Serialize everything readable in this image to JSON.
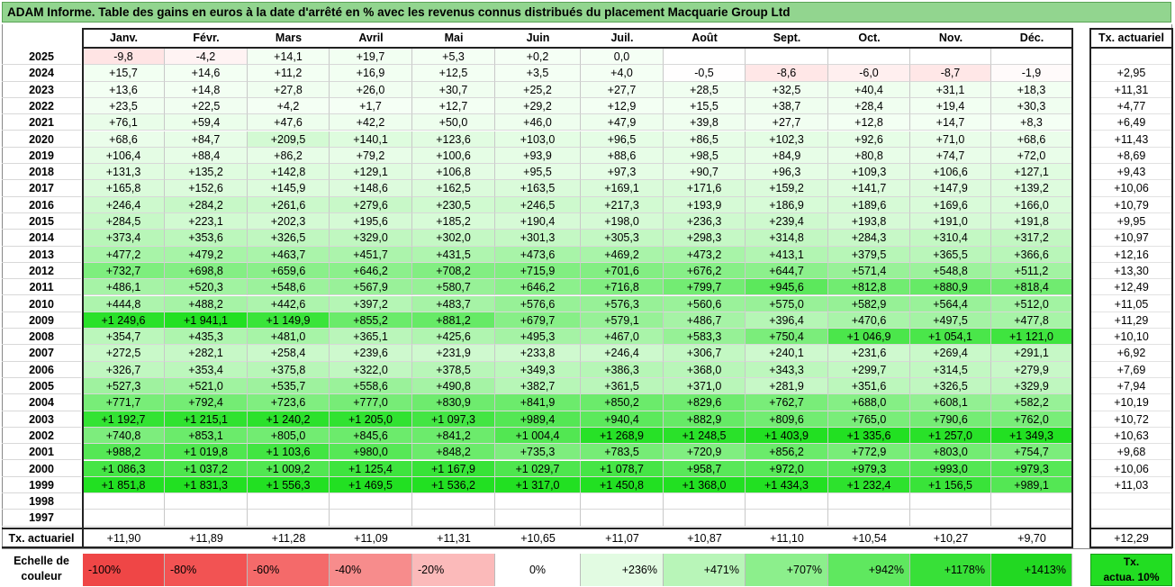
{
  "title": "ADAM Informe. Table des gains en euros à la date d'arrêté en % avec les revenus connus distribués du placement Macquarie Group Ltd",
  "months": [
    "Janv.",
    "Févr.",
    "Mars",
    "Avril",
    "Mai",
    "Juin",
    "Juil.",
    "Août",
    "Sept.",
    "Oct.",
    "Nov.",
    "Déc."
  ],
  "tx_header": "Tx. actuariel",
  "rows": [
    {
      "year": "2025",
      "vals": [
        "-9,8",
        "-4,2",
        "+14,1",
        "+19,7",
        "+5,3",
        "+0,2",
        "0,0",
        "",
        "",
        "",
        "",
        ""
      ],
      "tx": ""
    },
    {
      "year": "2024",
      "vals": [
        "+15,7",
        "+14,6",
        "+11,2",
        "+16,9",
        "+12,5",
        "+3,5",
        "+4,0",
        "-0,5",
        "-8,6",
        "-6,0",
        "-8,7",
        "-1,9"
      ],
      "tx": "+2,95"
    },
    {
      "year": "2023",
      "vals": [
        "+13,6",
        "+14,8",
        "+27,8",
        "+26,0",
        "+30,7",
        "+25,2",
        "+27,7",
        "+28,5",
        "+32,5",
        "+40,4",
        "+31,1",
        "+18,3"
      ],
      "tx": "+11,31"
    },
    {
      "year": "2022",
      "vals": [
        "+23,5",
        "+22,5",
        "+4,2",
        "+1,7",
        "+12,7",
        "+29,2",
        "+12,9",
        "+15,5",
        "+38,7",
        "+28,4",
        "+19,4",
        "+30,3"
      ],
      "tx": "+4,77"
    },
    {
      "year": "2021",
      "vals": [
        "+76,1",
        "+59,4",
        "+47,6",
        "+42,2",
        "+50,0",
        "+46,0",
        "+47,9",
        "+39,8",
        "+27,7",
        "+12,8",
        "+14,7",
        "+8,3"
      ],
      "tx": "+6,49"
    },
    {
      "year": "2020",
      "vals": [
        "+68,6",
        "+84,7",
        "+209,5",
        "+140,1",
        "+123,6",
        "+103,0",
        "+96,5",
        "+86,5",
        "+102,3",
        "+92,6",
        "+71,0",
        "+68,6"
      ],
      "tx": "+11,43"
    },
    {
      "year": "2019",
      "vals": [
        "+106,4",
        "+88,4",
        "+86,2",
        "+79,2",
        "+100,6",
        "+93,9",
        "+88,6",
        "+98,5",
        "+84,9",
        "+80,8",
        "+74,7",
        "+72,0"
      ],
      "tx": "+8,69"
    },
    {
      "year": "2018",
      "vals": [
        "+131,3",
        "+135,2",
        "+142,8",
        "+129,1",
        "+106,8",
        "+95,5",
        "+97,3",
        "+90,7",
        "+96,3",
        "+109,3",
        "+106,6",
        "+127,1"
      ],
      "tx": "+9,43"
    },
    {
      "year": "2017",
      "vals": [
        "+165,8",
        "+152,6",
        "+145,9",
        "+148,6",
        "+162,5",
        "+163,5",
        "+169,1",
        "+171,6",
        "+159,2",
        "+141,7",
        "+147,9",
        "+139,2"
      ],
      "tx": "+10,06"
    },
    {
      "year": "2016",
      "vals": [
        "+246,4",
        "+284,2",
        "+261,6",
        "+279,6",
        "+230,5",
        "+246,5",
        "+217,3",
        "+193,9",
        "+186,9",
        "+189,6",
        "+169,6",
        "+166,0"
      ],
      "tx": "+10,79"
    },
    {
      "year": "2015",
      "vals": [
        "+284,5",
        "+223,1",
        "+202,3",
        "+195,6",
        "+185,2",
        "+190,4",
        "+198,0",
        "+236,3",
        "+239,4",
        "+193,8",
        "+191,0",
        "+191,8"
      ],
      "tx": "+9,95"
    },
    {
      "year": "2014",
      "vals": [
        "+373,4",
        "+353,6",
        "+326,5",
        "+329,0",
        "+302,0",
        "+301,3",
        "+305,3",
        "+298,3",
        "+314,8",
        "+284,3",
        "+310,4",
        "+317,2"
      ],
      "tx": "+10,97"
    },
    {
      "year": "2013",
      "vals": [
        "+477,2",
        "+479,2",
        "+463,7",
        "+451,7",
        "+431,5",
        "+473,6",
        "+469,2",
        "+473,2",
        "+413,1",
        "+379,5",
        "+365,5",
        "+366,6"
      ],
      "tx": "+12,16"
    },
    {
      "year": "2012",
      "vals": [
        "+732,7",
        "+698,8",
        "+659,6",
        "+646,2",
        "+708,2",
        "+715,9",
        "+701,6",
        "+676,2",
        "+644,7",
        "+571,4",
        "+548,8",
        "+511,2"
      ],
      "tx": "+13,30"
    },
    {
      "year": "2011",
      "vals": [
        "+486,1",
        "+520,3",
        "+548,6",
        "+567,9",
        "+580,7",
        "+646,2",
        "+716,8",
        "+799,7",
        "+945,6",
        "+812,8",
        "+880,9",
        "+818,4"
      ],
      "tx": "+12,49"
    },
    {
      "year": "2010",
      "vals": [
        "+444,8",
        "+488,2",
        "+442,6",
        "+397,2",
        "+483,7",
        "+576,6",
        "+576,3",
        "+560,6",
        "+575,0",
        "+582,9",
        "+564,4",
        "+512,0"
      ],
      "tx": "+11,05"
    },
    {
      "year": "2009",
      "vals": [
        "+1 249,6",
        "+1 941,1",
        "+1 149,9",
        "+855,2",
        "+881,2",
        "+679,7",
        "+579,1",
        "+486,7",
        "+396,4",
        "+470,6",
        "+497,5",
        "+477,8"
      ],
      "tx": "+11,29"
    },
    {
      "year": "2008",
      "vals": [
        "+354,7",
        "+435,3",
        "+481,0",
        "+365,1",
        "+425,6",
        "+495,3",
        "+467,0",
        "+583,3",
        "+750,4",
        "+1 046,9",
        "+1 054,1",
        "+1 121,0"
      ],
      "tx": "+10,10"
    },
    {
      "year": "2007",
      "vals": [
        "+272,5",
        "+282,1",
        "+258,4",
        "+239,6",
        "+231,9",
        "+233,8",
        "+246,4",
        "+306,7",
        "+240,1",
        "+231,6",
        "+269,4",
        "+291,1"
      ],
      "tx": "+6,92"
    },
    {
      "year": "2006",
      "vals": [
        "+326,7",
        "+353,4",
        "+375,8",
        "+322,0",
        "+378,5",
        "+349,3",
        "+386,3",
        "+368,0",
        "+343,3",
        "+299,7",
        "+314,5",
        "+279,9"
      ],
      "tx": "+7,69"
    },
    {
      "year": "2005",
      "vals": [
        "+527,3",
        "+521,0",
        "+535,7",
        "+558,6",
        "+490,8",
        "+382,7",
        "+361,5",
        "+371,0",
        "+281,9",
        "+351,6",
        "+326,5",
        "+329,9"
      ],
      "tx": "+7,94"
    },
    {
      "year": "2004",
      "vals": [
        "+771,7",
        "+792,4",
        "+723,6",
        "+777,0",
        "+830,9",
        "+841,9",
        "+850,2",
        "+829,6",
        "+762,7",
        "+688,0",
        "+608,1",
        "+582,2"
      ],
      "tx": "+10,19"
    },
    {
      "year": "2003",
      "vals": [
        "+1 192,7",
        "+1 215,1",
        "+1 240,2",
        "+1 205,0",
        "+1 097,3",
        "+989,4",
        "+940,4",
        "+882,9",
        "+809,6",
        "+765,0",
        "+790,6",
        "+762,0"
      ],
      "tx": "+10,72"
    },
    {
      "year": "2002",
      "vals": [
        "+740,8",
        "+853,1",
        "+805,0",
        "+845,6",
        "+841,2",
        "+1 004,4",
        "+1 268,9",
        "+1 248,5",
        "+1 403,9",
        "+1 335,6",
        "+1 257,0",
        "+1 349,3"
      ],
      "tx": "+10,63"
    },
    {
      "year": "2001",
      "vals": [
        "+988,2",
        "+1 019,8",
        "+1 103,6",
        "+980,0",
        "+848,2",
        "+735,3",
        "+783,5",
        "+720,9",
        "+856,2",
        "+772,9",
        "+803,0",
        "+754,7"
      ],
      "tx": "+9,68"
    },
    {
      "year": "2000",
      "vals": [
        "+1 086,3",
        "+1 037,2",
        "+1 009,2",
        "+1 125,4",
        "+1 167,9",
        "+1 029,7",
        "+1 078,7",
        "+958,7",
        "+972,0",
        "+979,3",
        "+993,0",
        "+979,3"
      ],
      "tx": "+10,06"
    },
    {
      "year": "1999",
      "vals": [
        "+1 851,8",
        "+1 831,3",
        "+1 556,3",
        "+1 469,5",
        "+1 536,2",
        "+1 317,0",
        "+1 450,8",
        "+1 368,0",
        "+1 434,3",
        "+1 232,4",
        "+1 156,5",
        "+989,1"
      ],
      "tx": "+11,03"
    },
    {
      "year": "1998",
      "vals": [
        "",
        "",
        "",
        "",
        "",
        "",
        "",
        "",
        "",
        "",
        "",
        ""
      ],
      "tx": ""
    },
    {
      "year": "1997",
      "vals": [
        "",
        "",
        "",
        "",
        "",
        "",
        "",
        "",
        "",
        "",
        "",
        ""
      ],
      "tx": ""
    }
  ],
  "footer": {
    "label": "Tx. actuariel",
    "vals": [
      "+11,90",
      "+11,89",
      "+11,28",
      "+11,09",
      "+11,31",
      "+10,65",
      "+11,07",
      "+10,87",
      "+11,10",
      "+10,54",
      "+10,27",
      "+9,70"
    ],
    "total": "+12,29"
  },
  "scale": {
    "label_line1": "Echelle de",
    "label_line2": "couleur",
    "items": [
      {
        "text": "-100%",
        "color": "#ef4646",
        "align": "left"
      },
      {
        "text": "-80%",
        "color": "#f25353",
        "align": "left"
      },
      {
        "text": "-60%",
        "color": "#f46a6a",
        "align": "left"
      },
      {
        "text": "-40%",
        "color": "#f78c8c",
        "align": "left"
      },
      {
        "text": "-20%",
        "color": "#fbbaba",
        "align": "left"
      },
      {
        "text": "0%",
        "color": "#ffffff",
        "align": "center"
      },
      {
        "text": "+236%",
        "color": "#e2fbe2",
        "align": "right"
      },
      {
        "text": "+471%",
        "color": "#b8f5b8",
        "align": "right"
      },
      {
        "text": "+707%",
        "color": "#8cef8c",
        "align": "right"
      },
      {
        "text": "+942%",
        "color": "#5fe85f",
        "align": "right"
      },
      {
        "text": "+1178%",
        "color": "#38e038",
        "align": "right"
      },
      {
        "text": "+1413%",
        "color": "#22d822",
        "align": "right"
      }
    ],
    "tx_box_line1": "Tx.",
    "tx_box_line2": "actua. 10%"
  }
}
